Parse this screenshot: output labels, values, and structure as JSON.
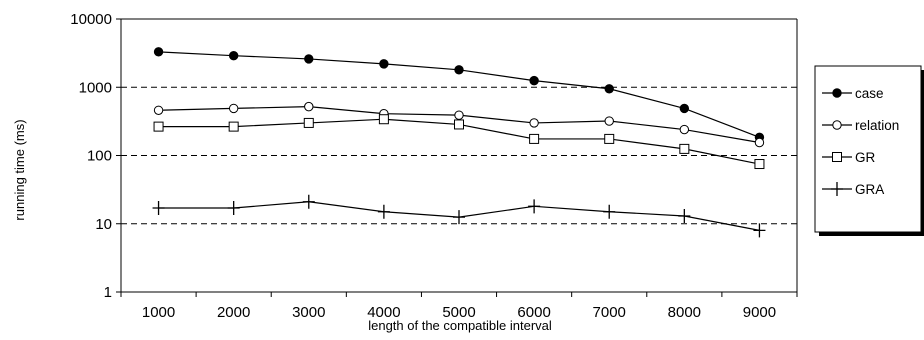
{
  "chart_data": {
    "type": "line",
    "title": "",
    "xlabel": "length of the compatible interval",
    "ylabel": "running time (ms)",
    "yscale": "log",
    "ylim": [
      1,
      10000
    ],
    "y_ticks": [
      "1",
      "10",
      "100",
      "1000",
      "10000"
    ],
    "categories": [
      "1000",
      "2000",
      "3000",
      "4000",
      "5000",
      "6000",
      "7000",
      "8000",
      "9000"
    ],
    "grid": "horizontal dashed lines at 10, 100 and 1000",
    "legend_position": "right",
    "series": [
      {
        "name": "case",
        "marker": "filled-circle",
        "values": [
          3300,
          2900,
          2600,
          2200,
          1800,
          1250,
          950,
          490,
          185
        ]
      },
      {
        "name": "relation",
        "marker": "open-circle",
        "values": [
          460,
          490,
          520,
          410,
          390,
          300,
          320,
          240,
          155
        ]
      },
      {
        "name": "GR",
        "marker": "open-square",
        "values": [
          265,
          265,
          300,
          340,
          285,
          175,
          175,
          125,
          75
        ]
      },
      {
        "name": "GRA",
        "marker": "plus",
        "values": [
          17,
          17,
          21,
          15,
          12.5,
          18,
          15,
          13,
          8
        ]
      }
    ]
  }
}
